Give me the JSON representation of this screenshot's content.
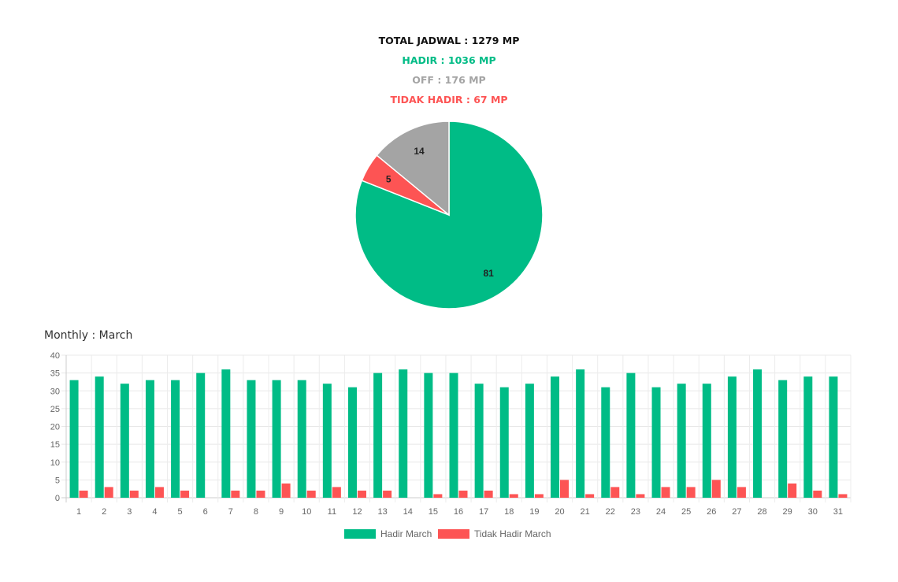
{
  "summary": {
    "total": "TOTAL JADWAL : 1279 MP",
    "hadir": "HADIR : 1036 MP",
    "off": "OFF : 176 MP",
    "tidak_hadir": "TIDAK HADIR : 67 MP"
  },
  "colors": {
    "total": "#111111",
    "hadir": "#00bc86",
    "off": "#a4a4a4",
    "tidak_hadir": "#fd5454"
  },
  "monthly_title": "Monthly : March",
  "chart_data": [
    {
      "type": "pie",
      "slices": [
        {
          "label": "81",
          "value": 81,
          "color": "#00bc86"
        },
        {
          "label": "5",
          "value": 5,
          "color": "#fd5454"
        },
        {
          "label": "14",
          "value": 14,
          "color": "#a4a4a4"
        }
      ]
    },
    {
      "type": "bar",
      "categories": [
        "1",
        "2",
        "3",
        "4",
        "5",
        "6",
        "7",
        "8",
        "9",
        "10",
        "11",
        "12",
        "13",
        "14",
        "15",
        "16",
        "17",
        "18",
        "19",
        "20",
        "21",
        "22",
        "23",
        "24",
        "25",
        "26",
        "27",
        "28",
        "29",
        "30",
        "31"
      ],
      "series": [
        {
          "name": "Hadir March",
          "color": "#00bc86",
          "values": [
            33,
            34,
            32,
            33,
            33,
            35,
            36,
            33,
            33,
            33,
            32,
            31,
            35,
            36,
            35,
            35,
            32,
            31,
            32,
            34,
            36,
            31,
            35,
            31,
            32,
            32,
            34,
            36,
            33,
            34,
            34
          ]
        },
        {
          "name": "Tidak Hadir March",
          "color": "#fd5454",
          "values": [
            2,
            3,
            2,
            3,
            2,
            0,
            2,
            2,
            4,
            2,
            3,
            2,
            2,
            0,
            1,
            2,
            2,
            1,
            1,
            5,
            1,
            3,
            1,
            3,
            3,
            5,
            3,
            0,
            4,
            2,
            1
          ]
        }
      ],
      "yticks": [
        "0",
        "5",
        "10",
        "15",
        "20",
        "25",
        "30",
        "35",
        "40"
      ],
      "ylim": [
        0,
        40
      ],
      "grid": true,
      "legend": "bottom"
    }
  ]
}
